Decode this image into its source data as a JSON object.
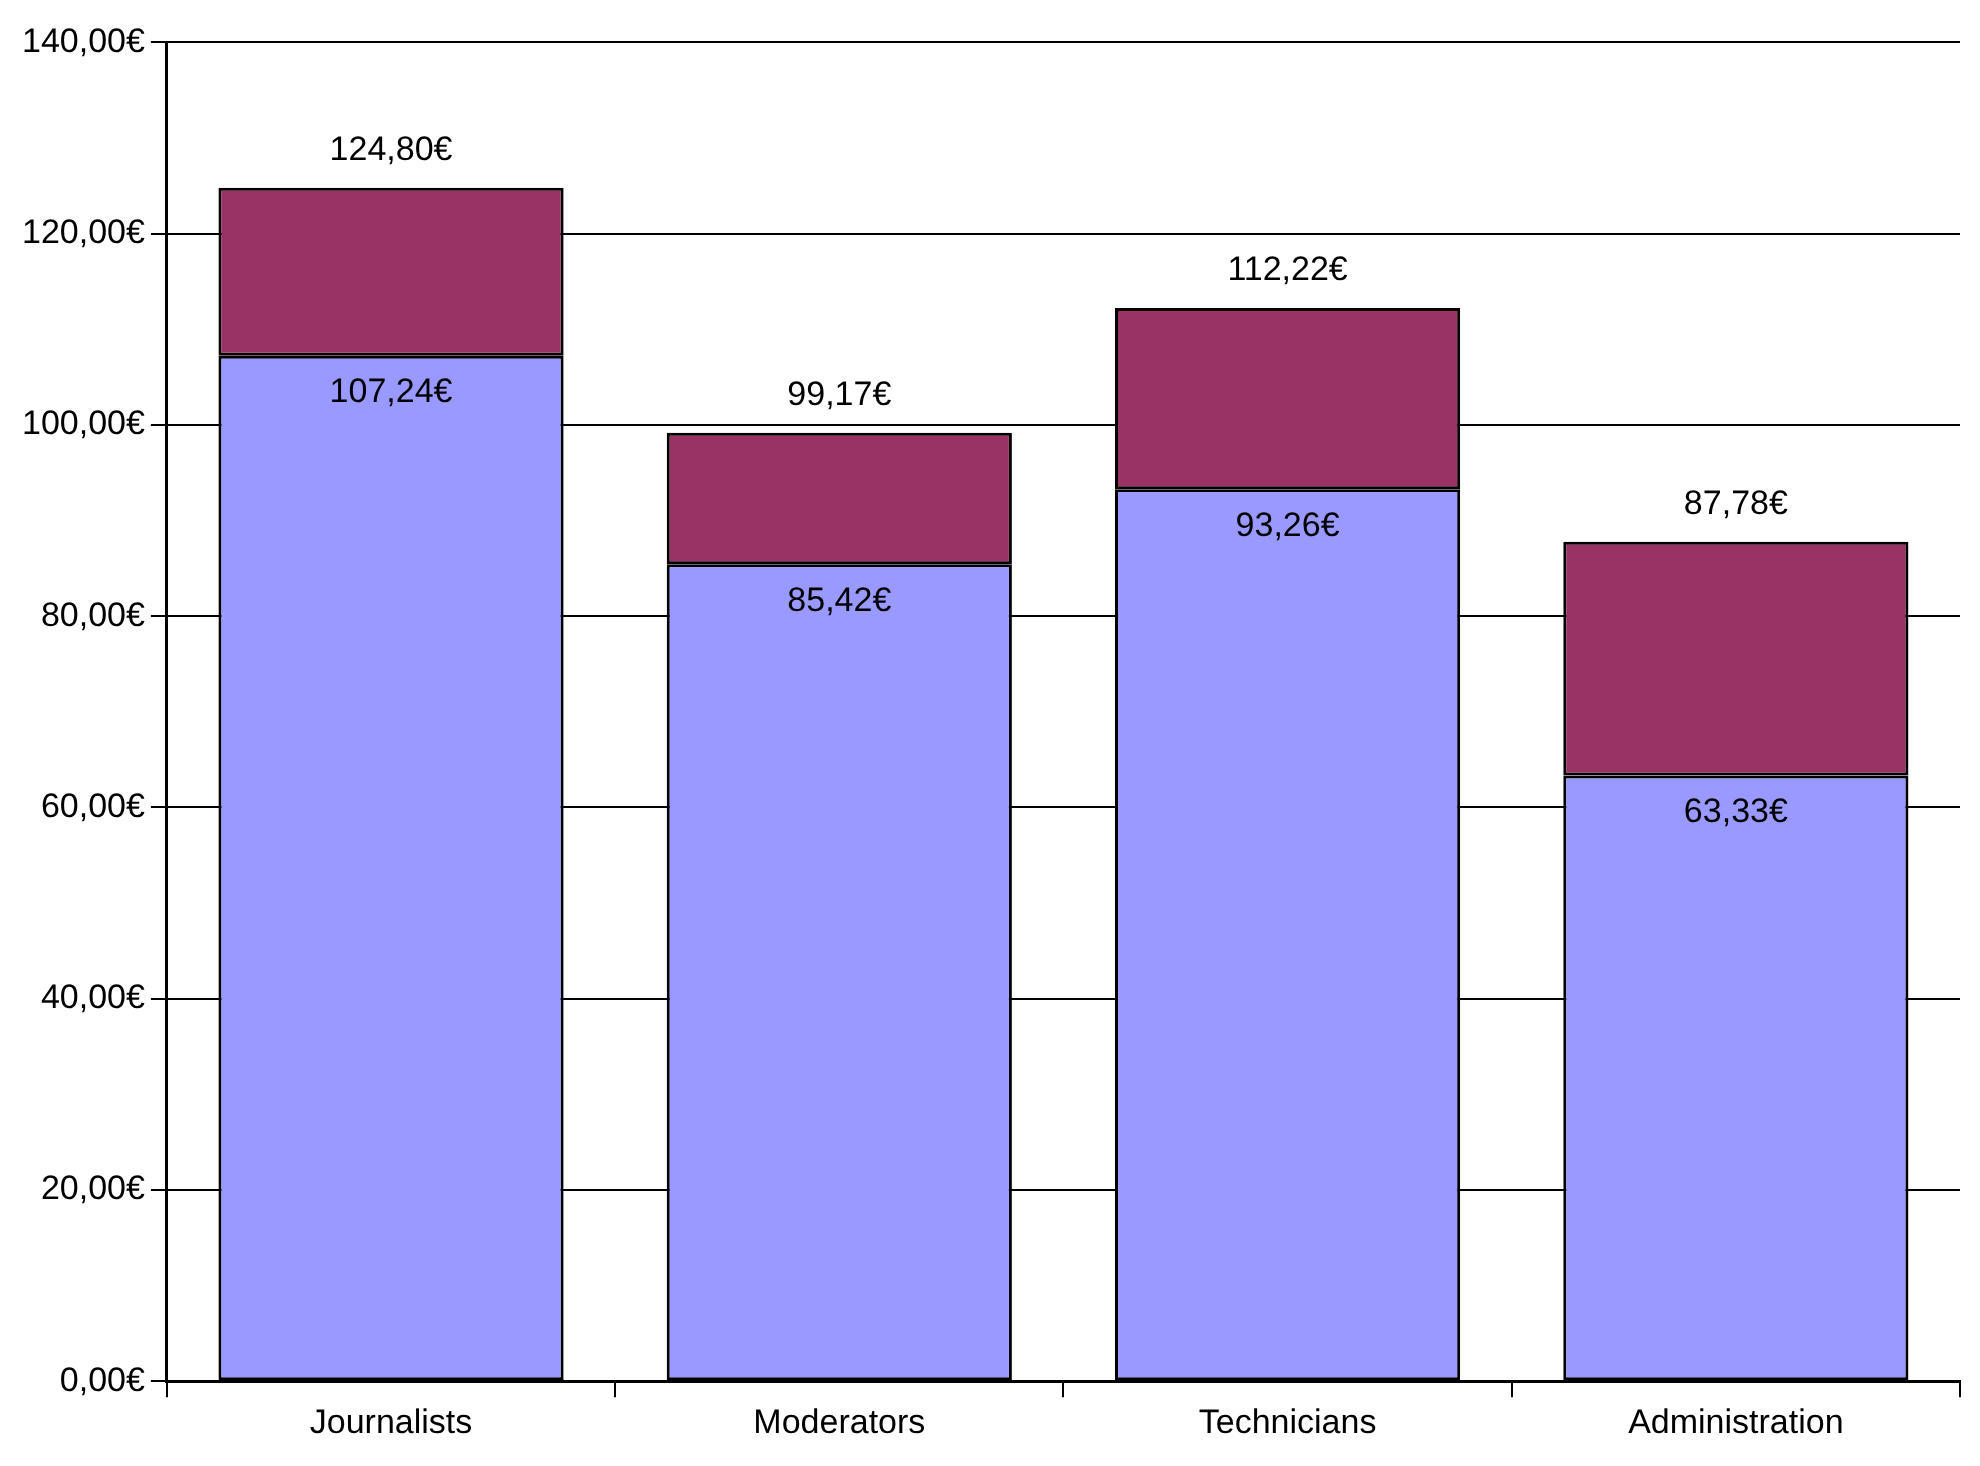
{
  "chart_data": {
    "type": "bar",
    "stacked": true,
    "categories": [
      "Journalists",
      "Moderators",
      "Technicians",
      "Administration"
    ],
    "series": [
      {
        "color": "#9999ff",
        "values": [
          107.24,
          85.42,
          93.26,
          63.33
        ],
        "value_labels": [
          "107,24€",
          "85,42€",
          "93,26€",
          "63,33€"
        ]
      },
      {
        "color": "#993366",
        "values": [
          17.56,
          13.75,
          18.96,
          24.45
        ]
      }
    ],
    "totals": [
      "124,80€",
      "99,17€",
      "112,22€",
      "87,78€"
    ],
    "ylim": [
      0,
      140
    ],
    "yticks": [
      {
        "value": 0,
        "label": "0,00€"
      },
      {
        "value": 20,
        "label": "20,00€"
      },
      {
        "value": 40,
        "label": "40,00€"
      },
      {
        "value": 60,
        "label": "60,00€"
      },
      {
        "value": 80,
        "label": "80,00€"
      },
      {
        "value": 100,
        "label": "100,00€"
      },
      {
        "value": 120,
        "label": "120,00€"
      },
      {
        "value": 140,
        "label": "140,00€"
      }
    ],
    "grid": "y",
    "legend": false
  }
}
